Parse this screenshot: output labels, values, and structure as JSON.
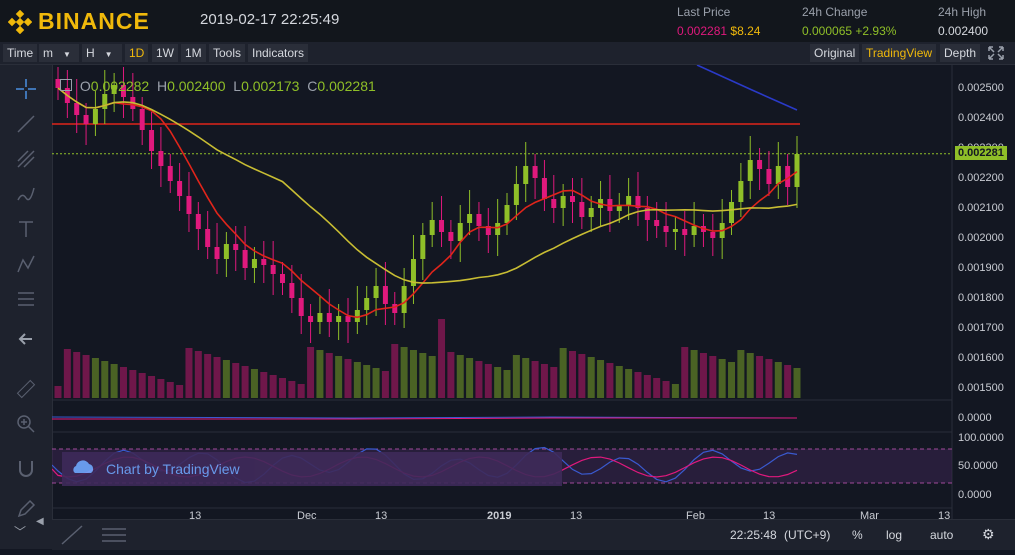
{
  "header": {
    "brand": "BINANCE",
    "datetime": "2019-02-17 22:25:49",
    "last_price_label": "Last Price",
    "last_price": "0.002281",
    "last_price_usd": "$8.24",
    "change_label": "24h Change",
    "change_value": "0.000065",
    "change_percent": "+2.93%",
    "high_label": "24h High",
    "high_value": "0.002400"
  },
  "toolbar": {
    "time": "Time",
    "minute": "m",
    "hour": "H",
    "d1": "1D",
    "w1": "1W",
    "mo1": "1M",
    "tools": "Tools",
    "indicators": "Indicators",
    "original": "Original",
    "tradingview": "TradingView",
    "depth": "Depth"
  },
  "ohlc": {
    "o_label": "O",
    "o": "0.002282",
    "h_label": "H",
    "h": "0.002400",
    "l_label": "L",
    "l": "0.002173",
    "c_label": "C",
    "c": "0.002281"
  },
  "price_axis": [
    "0.002500",
    "0.002400",
    "0.002300",
    "0.002200",
    "0.002100",
    "0.002000",
    "0.001900",
    "0.001800",
    "0.001700",
    "0.001600",
    "0.001500"
  ],
  "current_price_tag": "0.002281",
  "macd_axis": [
    "0.0000"
  ],
  "rsi_axis": [
    "100.0000",
    "50.0000",
    "0.0000"
  ],
  "x_axis": [
    "13",
    "Dec",
    "13",
    "2019",
    "13",
    "Feb",
    "13",
    "Mar",
    "13"
  ],
  "banner": {
    "label": "Chart by TradingView"
  },
  "bottom": {
    "time": "22:25:48",
    "tz": "(UTC+9)",
    "percent": "%",
    "log": "log",
    "auto": "auto"
  },
  "colors": {
    "up": "#8fbf28",
    "down": "#e0197d",
    "ma_fast": "#e0251b",
    "ma_slow": "#c8bd33",
    "ma_long": "#2a3ac8",
    "resistance": "#e0251b",
    "brand": "#f0b90b"
  },
  "chart_data": {
    "type": "candlestick",
    "resistance_level": 0.00238,
    "current_price": 0.002281
  }
}
